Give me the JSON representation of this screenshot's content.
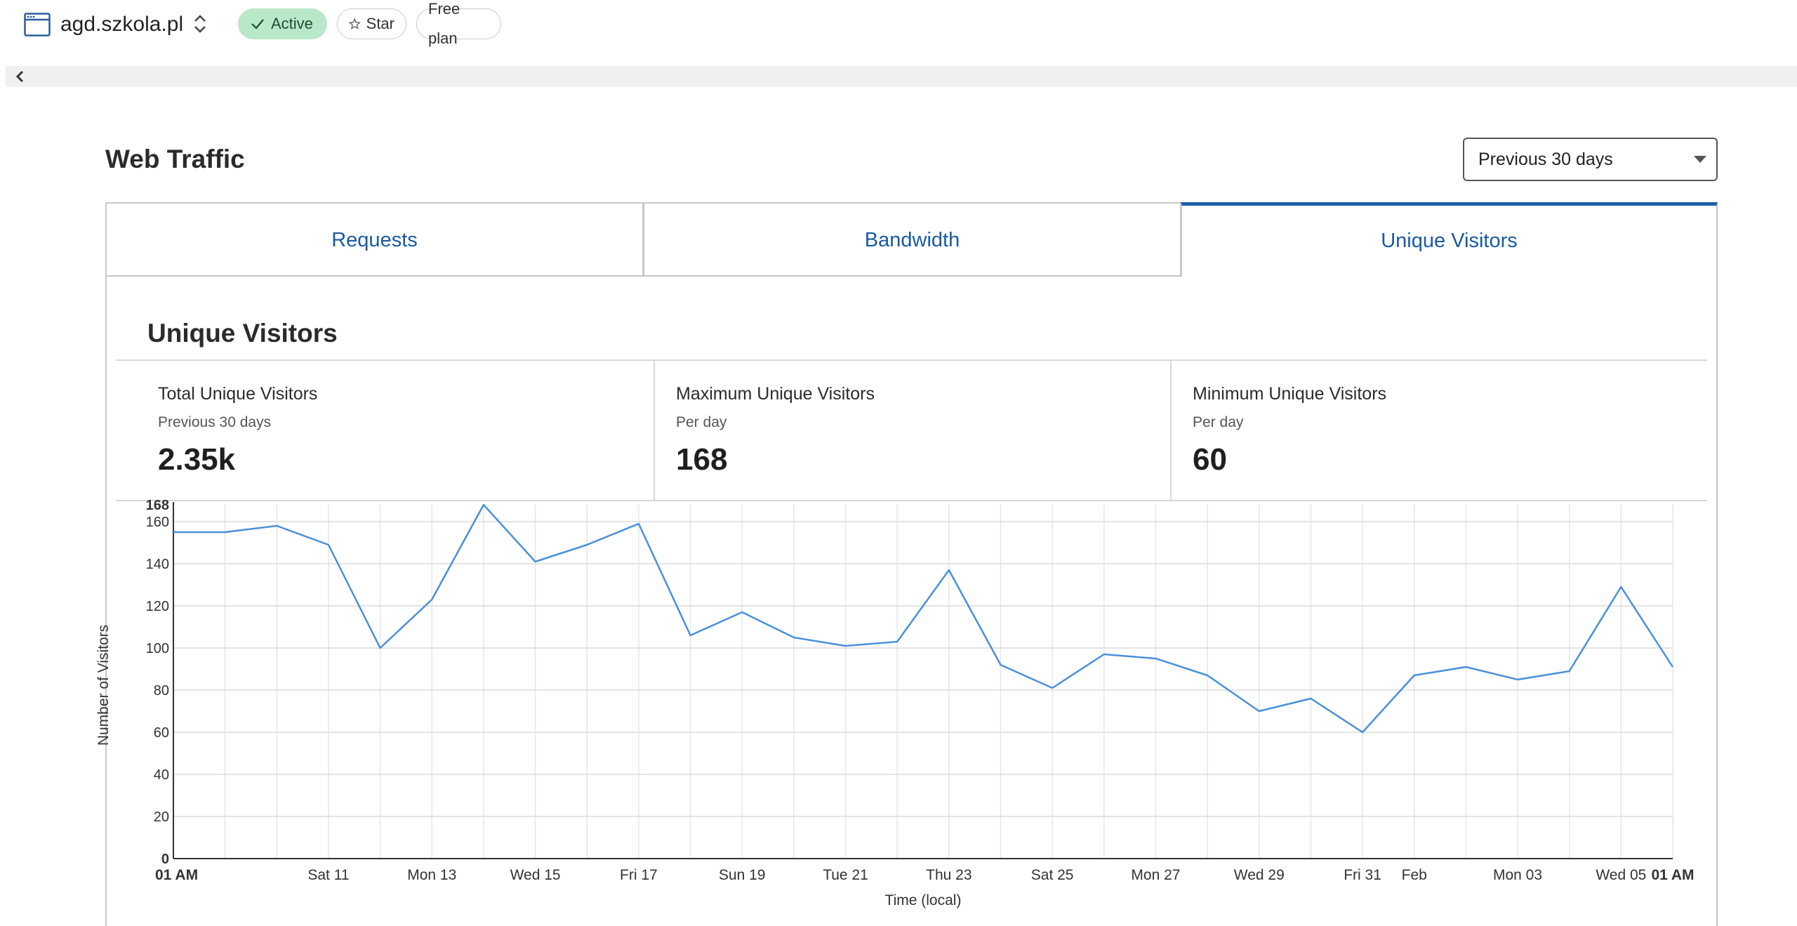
{
  "header": {
    "site_name": "agd.szkola.pl",
    "status_label": "Active",
    "star_label": "Star",
    "plan_label": "Free plan",
    "icons": [
      "browser-window-icon",
      "up-down-chevron-icon",
      "check-icon",
      "star-icon",
      "chevron-left-icon"
    ]
  },
  "traffic": {
    "title": "Web Traffic",
    "range": "Previous 30 days"
  },
  "tabs": [
    {
      "label": "Requests"
    },
    {
      "label": "Bandwidth"
    },
    {
      "label": "Unique Visitors",
      "active": true
    }
  ],
  "panel": {
    "title": "Unique Visitors",
    "stats": [
      {
        "label": "Total Unique Visitors",
        "sub": "Previous 30 days",
        "value": "2.35k"
      },
      {
        "label": "Maximum Unique Visitors",
        "sub": "Per day",
        "value": "168"
      },
      {
        "label": "Minimum Unique Visitors",
        "sub": "Per day",
        "value": "60"
      }
    ]
  },
  "colors": {
    "accent": "#1d5eab",
    "line": "#4a90d9",
    "active_pill": "#b9e8c9"
  },
  "chart_data": {
    "type": "line",
    "xlabel": "Time (local)",
    "ylabel": "Number of Visitors",
    "ylim": [
      0,
      168
    ],
    "yticks": [
      0,
      20,
      40,
      60,
      80,
      100,
      120,
      140,
      160,
      168
    ],
    "grid": true,
    "x_tick_labels": [
      {
        "index": 0,
        "label": "01 AM",
        "bold": true
      },
      {
        "index": 3,
        "label": "Sat 11"
      },
      {
        "index": 5,
        "label": "Mon 13"
      },
      {
        "index": 7,
        "label": "Wed 15"
      },
      {
        "index": 9,
        "label": "Fri 17"
      },
      {
        "index": 11,
        "label": "Sun 19"
      },
      {
        "index": 13,
        "label": "Tue 21"
      },
      {
        "index": 15,
        "label": "Thu 23"
      },
      {
        "index": 17,
        "label": "Sat 25"
      },
      {
        "index": 19,
        "label": "Mon 27"
      },
      {
        "index": 21,
        "label": "Wed 29"
      },
      {
        "index": 23,
        "label": "Fri 31"
      },
      {
        "index": 24,
        "label": "Feb"
      },
      {
        "index": 26,
        "label": "Mon 03"
      },
      {
        "index": 28,
        "label": "Wed 05"
      },
      {
        "index": 29,
        "label": "01 AM",
        "bold": true
      }
    ],
    "values": [
      155,
      155,
      158,
      149,
      100,
      123,
      168,
      141,
      149,
      159,
      106,
      117,
      105,
      101,
      103,
      137,
      92,
      81,
      97,
      95,
      87,
      70,
      76,
      60,
      87,
      91,
      85,
      89,
      129,
      91
    ]
  }
}
